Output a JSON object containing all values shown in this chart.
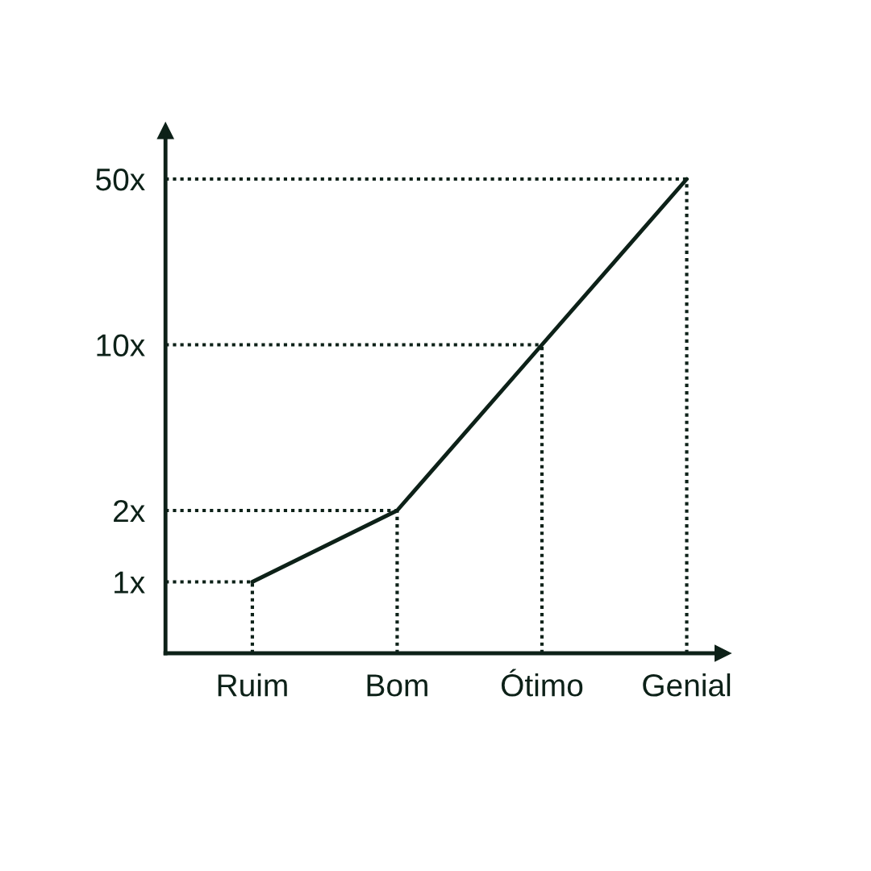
{
  "chart_data": {
    "type": "line",
    "categories": [
      "Ruim",
      "Bom",
      "Ótimo",
      "Genial"
    ],
    "series": [
      {
        "color": "#0d2118",
        "values": [
          1,
          2,
          10,
          50
        ]
      }
    ],
    "log": "y",
    "ylim": [
      0.5,
      80
    ],
    "yticks": [
      {
        "value": 1,
        "label": "1x"
      },
      {
        "value": 2,
        "label": "2x"
      },
      {
        "value": 10,
        "label": "10x"
      },
      {
        "value": 50,
        "label": "50x"
      }
    ],
    "ref_lines": [
      {
        "axis": "y",
        "value": 1,
        "line_style": "dotted"
      },
      {
        "axis": "y",
        "value": 2,
        "line_style": "dotted"
      },
      {
        "axis": "y",
        "value": 10,
        "line_style": "dotted"
      },
      {
        "axis": "y",
        "value": 50,
        "line_style": "dotted"
      },
      {
        "axis": "x",
        "value": "Ruim",
        "line_style": "dotted"
      },
      {
        "axis": "x",
        "value": "Bom",
        "line_style": "dotted"
      },
      {
        "axis": "x",
        "value": "Ótimo",
        "line_style": "dotted"
      },
      {
        "axis": "x",
        "value": "Genial",
        "line_style": "dotted"
      }
    ],
    "legend": false,
    "marker": "none",
    "line_style": "solid"
  }
}
